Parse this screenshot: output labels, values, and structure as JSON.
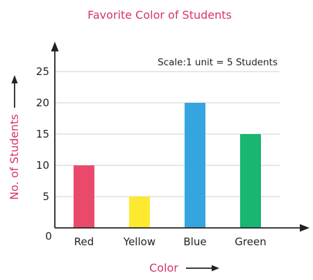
{
  "chart_data": {
    "type": "bar",
    "title": "Favorite Color of Students",
    "xlabel": "Color",
    "ylabel": "No. of Students",
    "annotation": "Scale:1 unit = 5 Students",
    "categories": [
      "Red",
      "Yellow",
      "Blue",
      "Green"
    ],
    "values": [
      10,
      5,
      20,
      15
    ],
    "colors": [
      "#e94a6c",
      "#fde92f",
      "#35a5e0",
      "#18b670"
    ],
    "ylim": [
      0,
      25
    ],
    "yticks": [
      "0",
      "5",
      "10",
      "15",
      "20",
      "25"
    ],
    "grid": true,
    "title_color": "#d6336c"
  }
}
